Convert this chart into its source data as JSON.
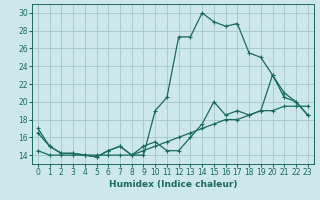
{
  "title": "",
  "xlabel": "Humidex (Indice chaleur)",
  "ylabel": "",
  "bg_color": "#cce8e8",
  "grid_color": "#aacccc",
  "line_color": "#1a6b5a",
  "xlim": [
    -0.5,
    23.5
  ],
  "ylim": [
    13,
    31
  ],
  "xticks": [
    0,
    1,
    2,
    3,
    4,
    5,
    6,
    7,
    8,
    9,
    10,
    11,
    12,
    13,
    14,
    15,
    16,
    17,
    18,
    19,
    20,
    21,
    22,
    23
  ],
  "yticks": [
    14,
    16,
    18,
    20,
    22,
    24,
    26,
    28,
    30
  ],
  "line1_x": [
    0,
    1,
    2,
    3,
    4,
    5,
    6,
    7,
    8,
    9,
    10,
    11,
    12,
    13,
    14,
    15,
    16,
    17,
    18,
    19,
    20,
    21,
    22,
    23
  ],
  "line1_y": [
    17,
    15,
    14.2,
    14.2,
    14,
    13.8,
    14.5,
    15,
    14,
    14,
    19,
    20.5,
    27.3,
    27.3,
    30,
    29,
    28.5,
    28.8,
    25.5,
    25,
    23,
    20.5,
    20,
    18.5
  ],
  "line2_x": [
    0,
    1,
    2,
    3,
    4,
    5,
    6,
    7,
    8,
    9,
    10,
    11,
    12,
    13,
    14,
    15,
    16,
    17,
    18,
    19,
    20,
    21,
    22,
    23
  ],
  "line2_y": [
    14.5,
    14,
    14,
    14,
    14,
    14,
    14,
    14,
    14,
    14.5,
    15,
    15.5,
    16,
    16.5,
    17,
    17.5,
    18,
    18,
    18.5,
    19,
    19,
    19.5,
    19.5,
    19.5
  ],
  "line3_x": [
    0,
    1,
    2,
    3,
    4,
    5,
    6,
    7,
    8,
    9,
    10,
    11,
    12,
    13,
    14,
    15,
    16,
    17,
    18,
    19,
    20,
    21,
    22,
    23
  ],
  "line3_y": [
    16.5,
    15,
    14.2,
    14.2,
    14,
    13.8,
    14.5,
    15,
    14,
    15,
    15.5,
    14.5,
    14.5,
    16,
    17.5,
    20,
    18.5,
    19,
    18.5,
    19,
    23,
    21,
    20,
    18.5
  ]
}
